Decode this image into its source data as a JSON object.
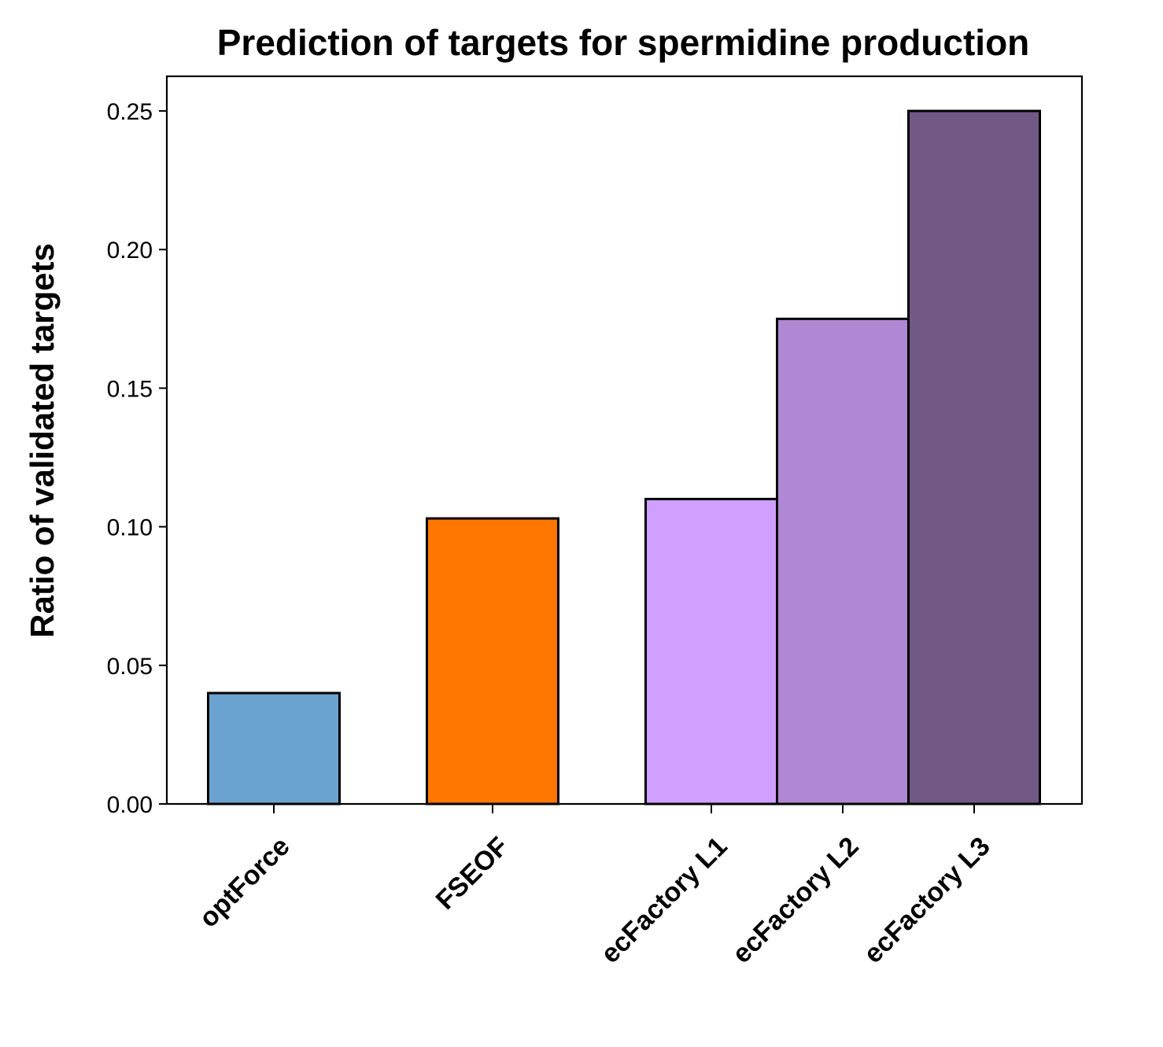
{
  "chart_data": {
    "type": "bar",
    "title": "Prediction of targets for spermidine production",
    "xlabel": "",
    "ylabel": "Ratio of validated targets",
    "categories": [
      "optForce",
      "FSEOF",
      "ecFactory L1",
      "ecFactory L2",
      "ecFactory L3"
    ],
    "values": [
      0.04,
      0.103,
      0.11,
      0.175,
      0.25
    ],
    "colors": [
      "#6ba3d0",
      "#ff7700",
      "#cfa0ff",
      "#af87d2",
      "#715885"
    ],
    "ylim": [
      0,
      0.2625
    ],
    "yticks": [
      "0.00",
      "0.05",
      "0.10",
      "0.15",
      "0.20",
      "0.25"
    ],
    "ytick_values": [
      0,
      0.05,
      0.1,
      0.15,
      0.2,
      0.25
    ],
    "grid": false,
    "legend": "none"
  }
}
